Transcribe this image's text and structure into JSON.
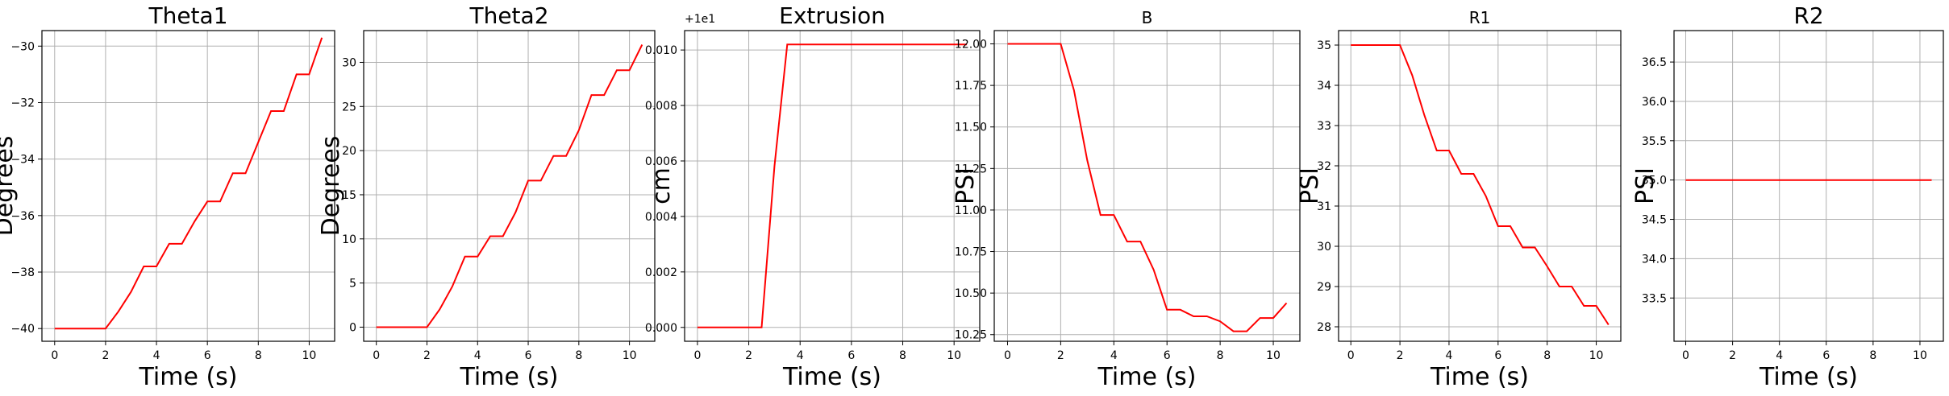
{
  "chart_data": [
    {
      "type": "line",
      "title": "Theta1",
      "xlabel": "Time (s)",
      "ylabel": "Degrees",
      "offset_label": "",
      "xlim": [
        -0.5,
        11
      ],
      "ylim": [
        -40.45,
        -29.45
      ],
      "x_ticks": [
        0,
        2,
        4,
        6,
        8,
        10
      ],
      "x_tick_labels": [
        "0",
        "2",
        "4",
        "6",
        "8",
        "10"
      ],
      "y_ticks": [
        -40,
        -38,
        -36,
        -34,
        -32,
        -30
      ],
      "y_tick_labels": [
        "−40",
        "−38",
        "−36",
        "−34",
        "−32",
        "−30"
      ],
      "grid": true,
      "series": [
        {
          "color": "#ff0000",
          "x": [
            0,
            1,
            2,
            2.5,
            3,
            3.5,
            4,
            4.5,
            5,
            5.5,
            6,
            6.5,
            7,
            7.5,
            8,
            8.5,
            9,
            9.5,
            10,
            10.5
          ],
          "y": [
            -40,
            -40,
            -40,
            -39.4,
            -38.7,
            -37.8,
            -37.8,
            -37.0,
            -37.0,
            -36.2,
            -35.5,
            -35.5,
            -34.5,
            -34.5,
            -33.4,
            -32.3,
            -32.3,
            -31.0,
            -31.0,
            -29.7
          ]
        }
      ]
    },
    {
      "type": "line",
      "title": "Theta2",
      "xlabel": "Time (s)",
      "ylabel": "Degrees",
      "offset_label": "",
      "xlim": [
        -0.5,
        11
      ],
      "ylim": [
        -1.6,
        33.6
      ],
      "x_ticks": [
        0,
        2,
        4,
        6,
        8,
        10
      ],
      "x_tick_labels": [
        "0",
        "2",
        "4",
        "6",
        "8",
        "10"
      ],
      "y_ticks": [
        0,
        5,
        10,
        15,
        20,
        25,
        30
      ],
      "y_tick_labels": [
        "0",
        "5",
        "10",
        "15",
        "20",
        "25",
        "30"
      ],
      "grid": true,
      "series": [
        {
          "color": "#ff0000",
          "x": [
            0,
            1,
            2,
            2.5,
            3,
            3.5,
            4,
            4.5,
            5,
            5.5,
            6,
            6.5,
            7,
            7.5,
            8,
            8.5,
            9,
            9.5,
            10,
            10.5
          ],
          "y": [
            0,
            0,
            0,
            2.0,
            4.6,
            8.0,
            8.0,
            10.3,
            10.3,
            13.0,
            16.6,
            16.6,
            19.4,
            19.4,
            22.3,
            26.3,
            26.3,
            29.1,
            29.1,
            32.0
          ]
        }
      ]
    },
    {
      "type": "line",
      "title": "Extrusion",
      "xlabel": "Time (s)",
      "ylabel": "cm",
      "offset_label": "+1e1",
      "xlim": [
        -0.5,
        11
      ],
      "ylim": [
        -0.0005,
        0.0107
      ],
      "x_ticks": [
        0,
        2,
        4,
        6,
        8,
        10
      ],
      "x_tick_labels": [
        "0",
        "2",
        "4",
        "6",
        "8",
        "10"
      ],
      "y_ticks": [
        0,
        0.002,
        0.004,
        0.006,
        0.008,
        0.01
      ],
      "y_tick_labels": [
        "0.000",
        "0.002",
        "0.004",
        "0.006",
        "0.008",
        "0.010"
      ],
      "grid": true,
      "series": [
        {
          "color": "#ff0000",
          "x": [
            0,
            1,
            2,
            2.5,
            3,
            3.5,
            4,
            5,
            6,
            7,
            8,
            9,
            10,
            10.5
          ],
          "y": [
            0,
            0,
            0,
            0,
            0.0058,
            0.0102,
            0.0102,
            0.0102,
            0.0102,
            0.0102,
            0.0102,
            0.0102,
            0.0102,
            0.0102
          ]
        }
      ]
    },
    {
      "type": "line",
      "title": "B",
      "xlabel": "Time (s)",
      "ylabel": "PSI",
      "offset_label": "",
      "xlim": [
        -0.5,
        11
      ],
      "ylim": [
        10.21,
        12.08
      ],
      "x_ticks": [
        0,
        2,
        4,
        6,
        8,
        10
      ],
      "x_tick_labels": [
        "0",
        "2",
        "4",
        "6",
        "8",
        "10"
      ],
      "y_ticks": [
        10.25,
        10.5,
        10.75,
        11.0,
        11.25,
        11.5,
        11.75,
        12.0
      ],
      "y_tick_labels": [
        "10.25",
        "10.50",
        "10.75",
        "11.00",
        "11.25",
        "11.50",
        "11.75",
        "12.00"
      ],
      "grid": true,
      "series": [
        {
          "color": "#ff0000",
          "x": [
            0,
            1,
            2,
            2.5,
            3,
            3.5,
            4,
            4.5,
            5,
            5.5,
            6,
            6.5,
            7,
            7.5,
            8,
            8.5,
            9,
            9.5,
            10,
            10.5
          ],
          "y": [
            12.0,
            12.0,
            12.0,
            11.72,
            11.3,
            10.97,
            10.97,
            10.81,
            10.81,
            10.64,
            10.4,
            10.4,
            10.36,
            10.36,
            10.33,
            10.27,
            10.27,
            10.35,
            10.35,
            10.44
          ]
        }
      ]
    },
    {
      "type": "line",
      "title": "R1",
      "xlabel": "Time (s)",
      "ylabel": "PSI",
      "offset_label": "",
      "xlim": [
        -0.5,
        11
      ],
      "ylim": [
        27.64,
        35.36
      ],
      "x_ticks": [
        0,
        2,
        4,
        6,
        8,
        10
      ],
      "x_tick_labels": [
        "0",
        "2",
        "4",
        "6",
        "8",
        "10"
      ],
      "y_ticks": [
        28,
        29,
        30,
        31,
        32,
        33,
        34,
        35
      ],
      "y_tick_labels": [
        "28",
        "29",
        "30",
        "31",
        "32",
        "33",
        "34",
        "35"
      ],
      "grid": true,
      "series": [
        {
          "color": "#ff0000",
          "x": [
            0,
            1,
            2,
            2.5,
            3,
            3.5,
            4,
            4.5,
            5,
            5.5,
            6,
            6.5,
            7,
            7.5,
            8,
            8.5,
            9,
            9.5,
            10,
            10.5
          ],
          "y": [
            35,
            35,
            35,
            34.25,
            33.25,
            32.38,
            32.38,
            31.8,
            31.8,
            31.25,
            30.5,
            30.5,
            29.97,
            29.97,
            29.5,
            29.0,
            29.0,
            28.52,
            28.52,
            28.05
          ]
        }
      ]
    },
    {
      "type": "line",
      "title": "R2",
      "xlabel": "Time (s)",
      "ylabel": "PSI",
      "offset_label": "",
      "xlim": [
        -0.5,
        11
      ],
      "ylim": [
        32.95,
        36.9
      ],
      "x_ticks": [
        0,
        2,
        4,
        6,
        8,
        10
      ],
      "x_tick_labels": [
        "0",
        "2",
        "4",
        "6",
        "8",
        "10"
      ],
      "y_ticks": [
        33.5,
        34.0,
        34.5,
        35.0,
        35.5,
        36.0,
        36.5
      ],
      "y_tick_labels": [
        "33.5",
        "34.0",
        "34.5",
        "35.0",
        "35.5",
        "36.0",
        "36.5"
      ],
      "grid": true,
      "series": [
        {
          "color": "#ff0000",
          "x": [
            0,
            10.5
          ],
          "y": [
            35,
            35
          ]
        }
      ]
    }
  ]
}
